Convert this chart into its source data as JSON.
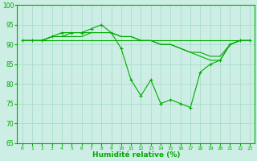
{
  "x": [
    0,
    1,
    2,
    3,
    4,
    5,
    6,
    7,
    8,
    9,
    10,
    11,
    12,
    13,
    14,
    15,
    16,
    17,
    18,
    19,
    20,
    21,
    22,
    23
  ],
  "line1": [
    91,
    91,
    91,
    92,
    93,
    93,
    93,
    94,
    95,
    93,
    89,
    81,
    77,
    81,
    75,
    76,
    75,
    74,
    83,
    85,
    86,
    90,
    91,
    91
  ],
  "line2": [
    91,
    91,
    91,
    91,
    91,
    91,
    91,
    91,
    91,
    91,
    91,
    91,
    91,
    91,
    91,
    91,
    91,
    91,
    91,
    91,
    91,
    91,
    91,
    91
  ],
  "line3": [
    91,
    91,
    91,
    92,
    92,
    93,
    93,
    93,
    93,
    93,
    92,
    92,
    91,
    91,
    90,
    90,
    89,
    88,
    88,
    87,
    87,
    90,
    91,
    91
  ],
  "line4": [
    91,
    91,
    91,
    92,
    92,
    92,
    92,
    93,
    93,
    93,
    92,
    92,
    91,
    91,
    90,
    90,
    89,
    88,
    87,
    86,
    86,
    90,
    91,
    91
  ],
  "line_color": "#00aa00",
  "bg_color": "#cceee4",
  "grid_color": "#aaddcc",
  "xlabel": "Humidité relative (%)",
  "ylim": [
    65,
    100
  ],
  "xlim": [
    -0.5,
    23.5
  ],
  "yticks": [
    65,
    70,
    75,
    80,
    85,
    90,
    95,
    100
  ],
  "xticks": [
    0,
    1,
    2,
    3,
    4,
    5,
    6,
    7,
    8,
    9,
    10,
    11,
    12,
    13,
    14,
    15,
    16,
    17,
    18,
    19,
    20,
    21,
    22,
    23
  ]
}
